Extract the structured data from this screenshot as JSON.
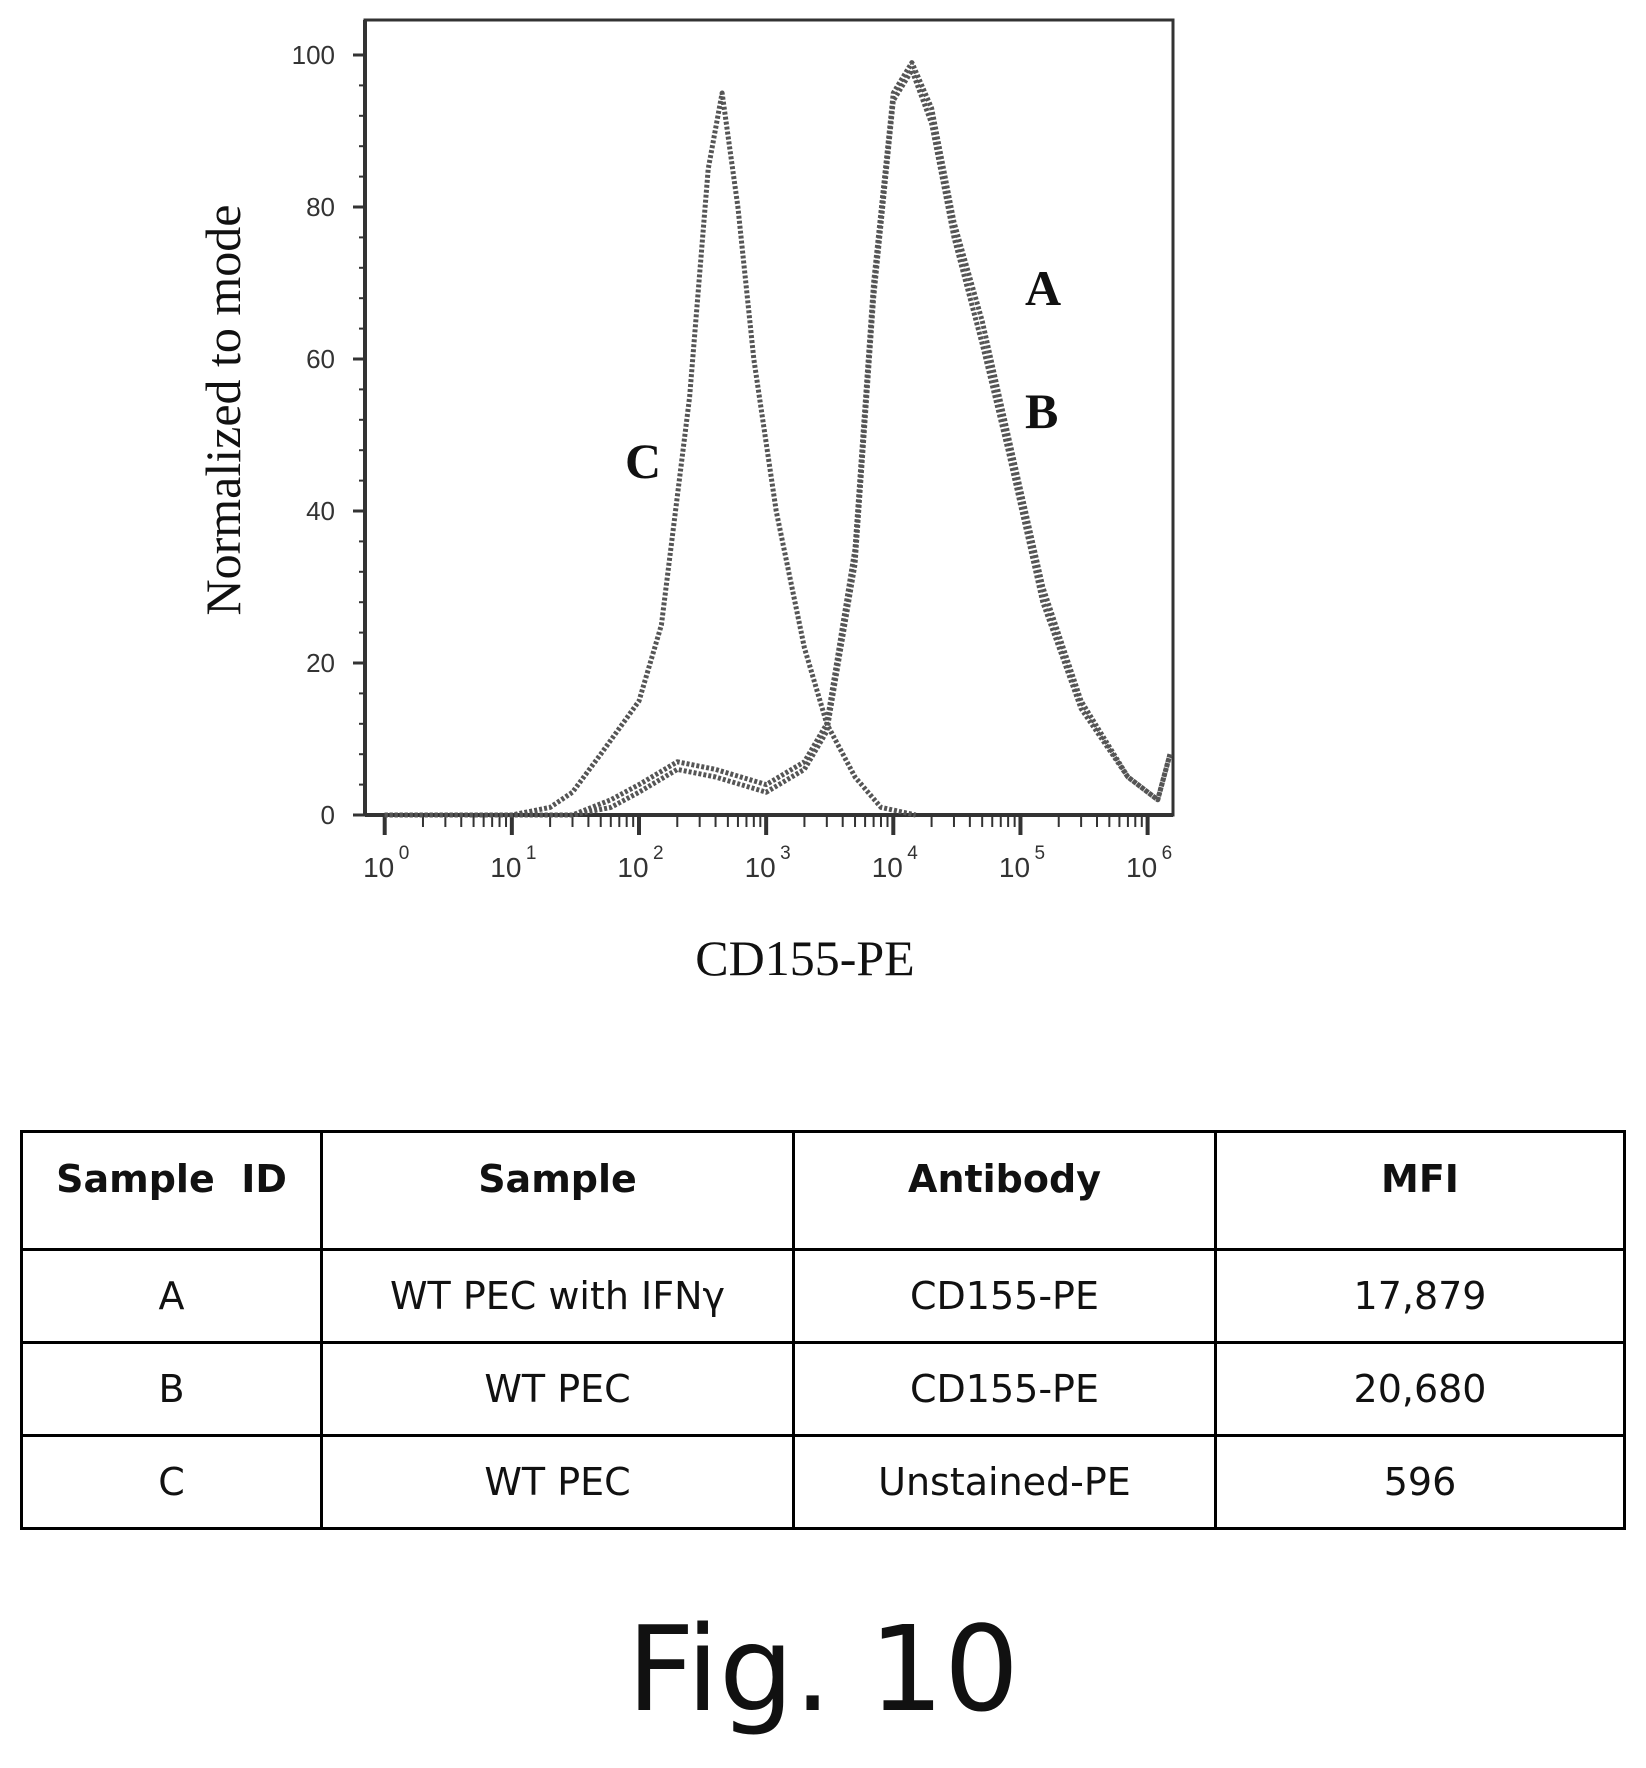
{
  "chart_data": {
    "type": "line",
    "xscale": "log",
    "xlim": [
      0.7,
      1500000
    ],
    "ylim": [
      0,
      100
    ],
    "xlabel": "CD155-PE",
    "ylabel": "Normalized to mode",
    "yticks": [
      "0",
      "20",
      "40",
      "60",
      "80",
      "100"
    ],
    "xticks": [
      {
        "base": "10",
        "exp": "0"
      },
      {
        "base": "10",
        "exp": "1"
      },
      {
        "base": "10",
        "exp": "2"
      },
      {
        "base": "10",
        "exp": "3"
      },
      {
        "base": "10",
        "exp": "4"
      },
      {
        "base": "10",
        "exp": "5"
      },
      {
        "base": "10",
        "exp": "6"
      }
    ],
    "series": [
      {
        "name": "A",
        "x": [
          1,
          30,
          60,
          100,
          200,
          400,
          1000,
          2000,
          3000,
          5000,
          7000,
          10000,
          14000,
          20000,
          30000,
          50000,
          80000,
          150000,
          300000,
          700000,
          1200000,
          1500000
        ],
        "y": [
          0,
          0,
          2,
          4,
          7,
          6,
          4,
          7,
          12,
          35,
          70,
          95,
          99,
          93,
          78,
          65,
          50,
          30,
          15,
          5,
          2,
          8
        ]
      },
      {
        "name": "B",
        "x": [
          1,
          30,
          60,
          100,
          200,
          400,
          1000,
          2000,
          3000,
          5000,
          7000,
          10000,
          14000,
          20000,
          30000,
          50000,
          80000,
          150000,
          300000,
          700000,
          1200000,
          1500000
        ],
        "y": [
          0,
          0,
          1,
          3,
          6,
          5,
          3,
          6,
          11,
          33,
          68,
          94,
          98,
          91,
          76,
          62,
          48,
          28,
          14,
          5,
          2,
          8
        ]
      },
      {
        "name": "C",
        "x": [
          1,
          10,
          20,
          30,
          50,
          100,
          150,
          250,
          350,
          450,
          600,
          800,
          1200,
          2000,
          3000,
          5000,
          8000,
          15000
        ],
        "y": [
          0,
          0,
          1,
          3,
          8,
          15,
          25,
          55,
          85,
          95,
          80,
          60,
          40,
          22,
          12,
          5,
          1,
          0
        ]
      }
    ]
  },
  "table": {
    "headers": [
      "Sample  ID",
      "Sample",
      "Antibody",
      "MFI"
    ],
    "rows": [
      [
        "A",
        "WT PEC with IFNγ",
        "CD155-PE",
        "17,879"
      ],
      [
        "B",
        "WT PEC",
        "CD155-PE",
        "20,680"
      ],
      [
        "C",
        "WT PEC",
        "Unstained-PE",
        "596"
      ]
    ]
  },
  "figure_caption": "Fig. 10"
}
